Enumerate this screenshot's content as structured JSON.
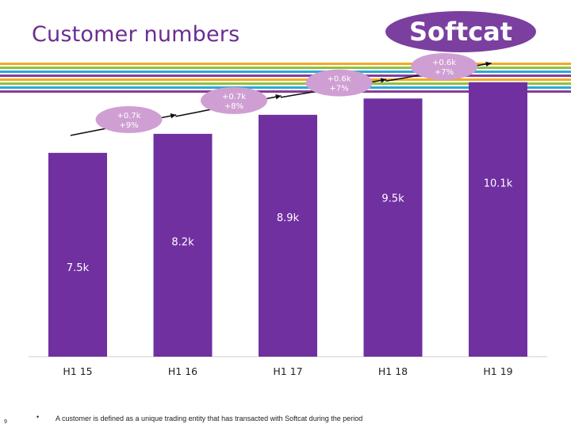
{
  "slide": {
    "title": "Customer numbers",
    "logo_text": "Softcat",
    "footnote": "A customer is defined as a unique trading entity that has transacted with Softcat during the period",
    "bullet": "•",
    "page_number": "9"
  },
  "colors": {
    "bar": "#7030a0",
    "title": "#6b2d90",
    "logo": "#7b3fa0",
    "bubble": "#cf9fd3",
    "stripes": [
      "#f4a91e",
      "#8fc13d",
      "#2aa9d6",
      "#8a3c99",
      "#f4a91e",
      "#8fc13d",
      "#2aa9d6",
      "#8a3c99"
    ]
  },
  "chart_data": {
    "type": "bar",
    "title": "Customer numbers",
    "categories": [
      "H1 15",
      "H1 16",
      "H1 17",
      "H1 18",
      "H1 19"
    ],
    "values": [
      7.5,
      8.2,
      8.9,
      9.5,
      10.1
    ],
    "value_labels": [
      "7.5k",
      "8.2k",
      "8.9k",
      "9.5k",
      "10.1k"
    ],
    "unit": "k customers",
    "ylim": [
      0,
      10.5
    ],
    "annotations": [
      {
        "between": [
          "H1 15",
          "H1 16"
        ],
        "line1": "+0.7k",
        "line2": "+9%"
      },
      {
        "between": [
          "H1 16",
          "H1 17"
        ],
        "line1": "+0.7k",
        "line2": "+8%"
      },
      {
        "between": [
          "H1 17",
          "H1 18"
        ],
        "line1": "+0.6k",
        "line2": "+7%"
      },
      {
        "between": [
          "H1 18",
          "H1 19"
        ],
        "line1": "+0.6k",
        "line2": "+7%"
      }
    ]
  }
}
